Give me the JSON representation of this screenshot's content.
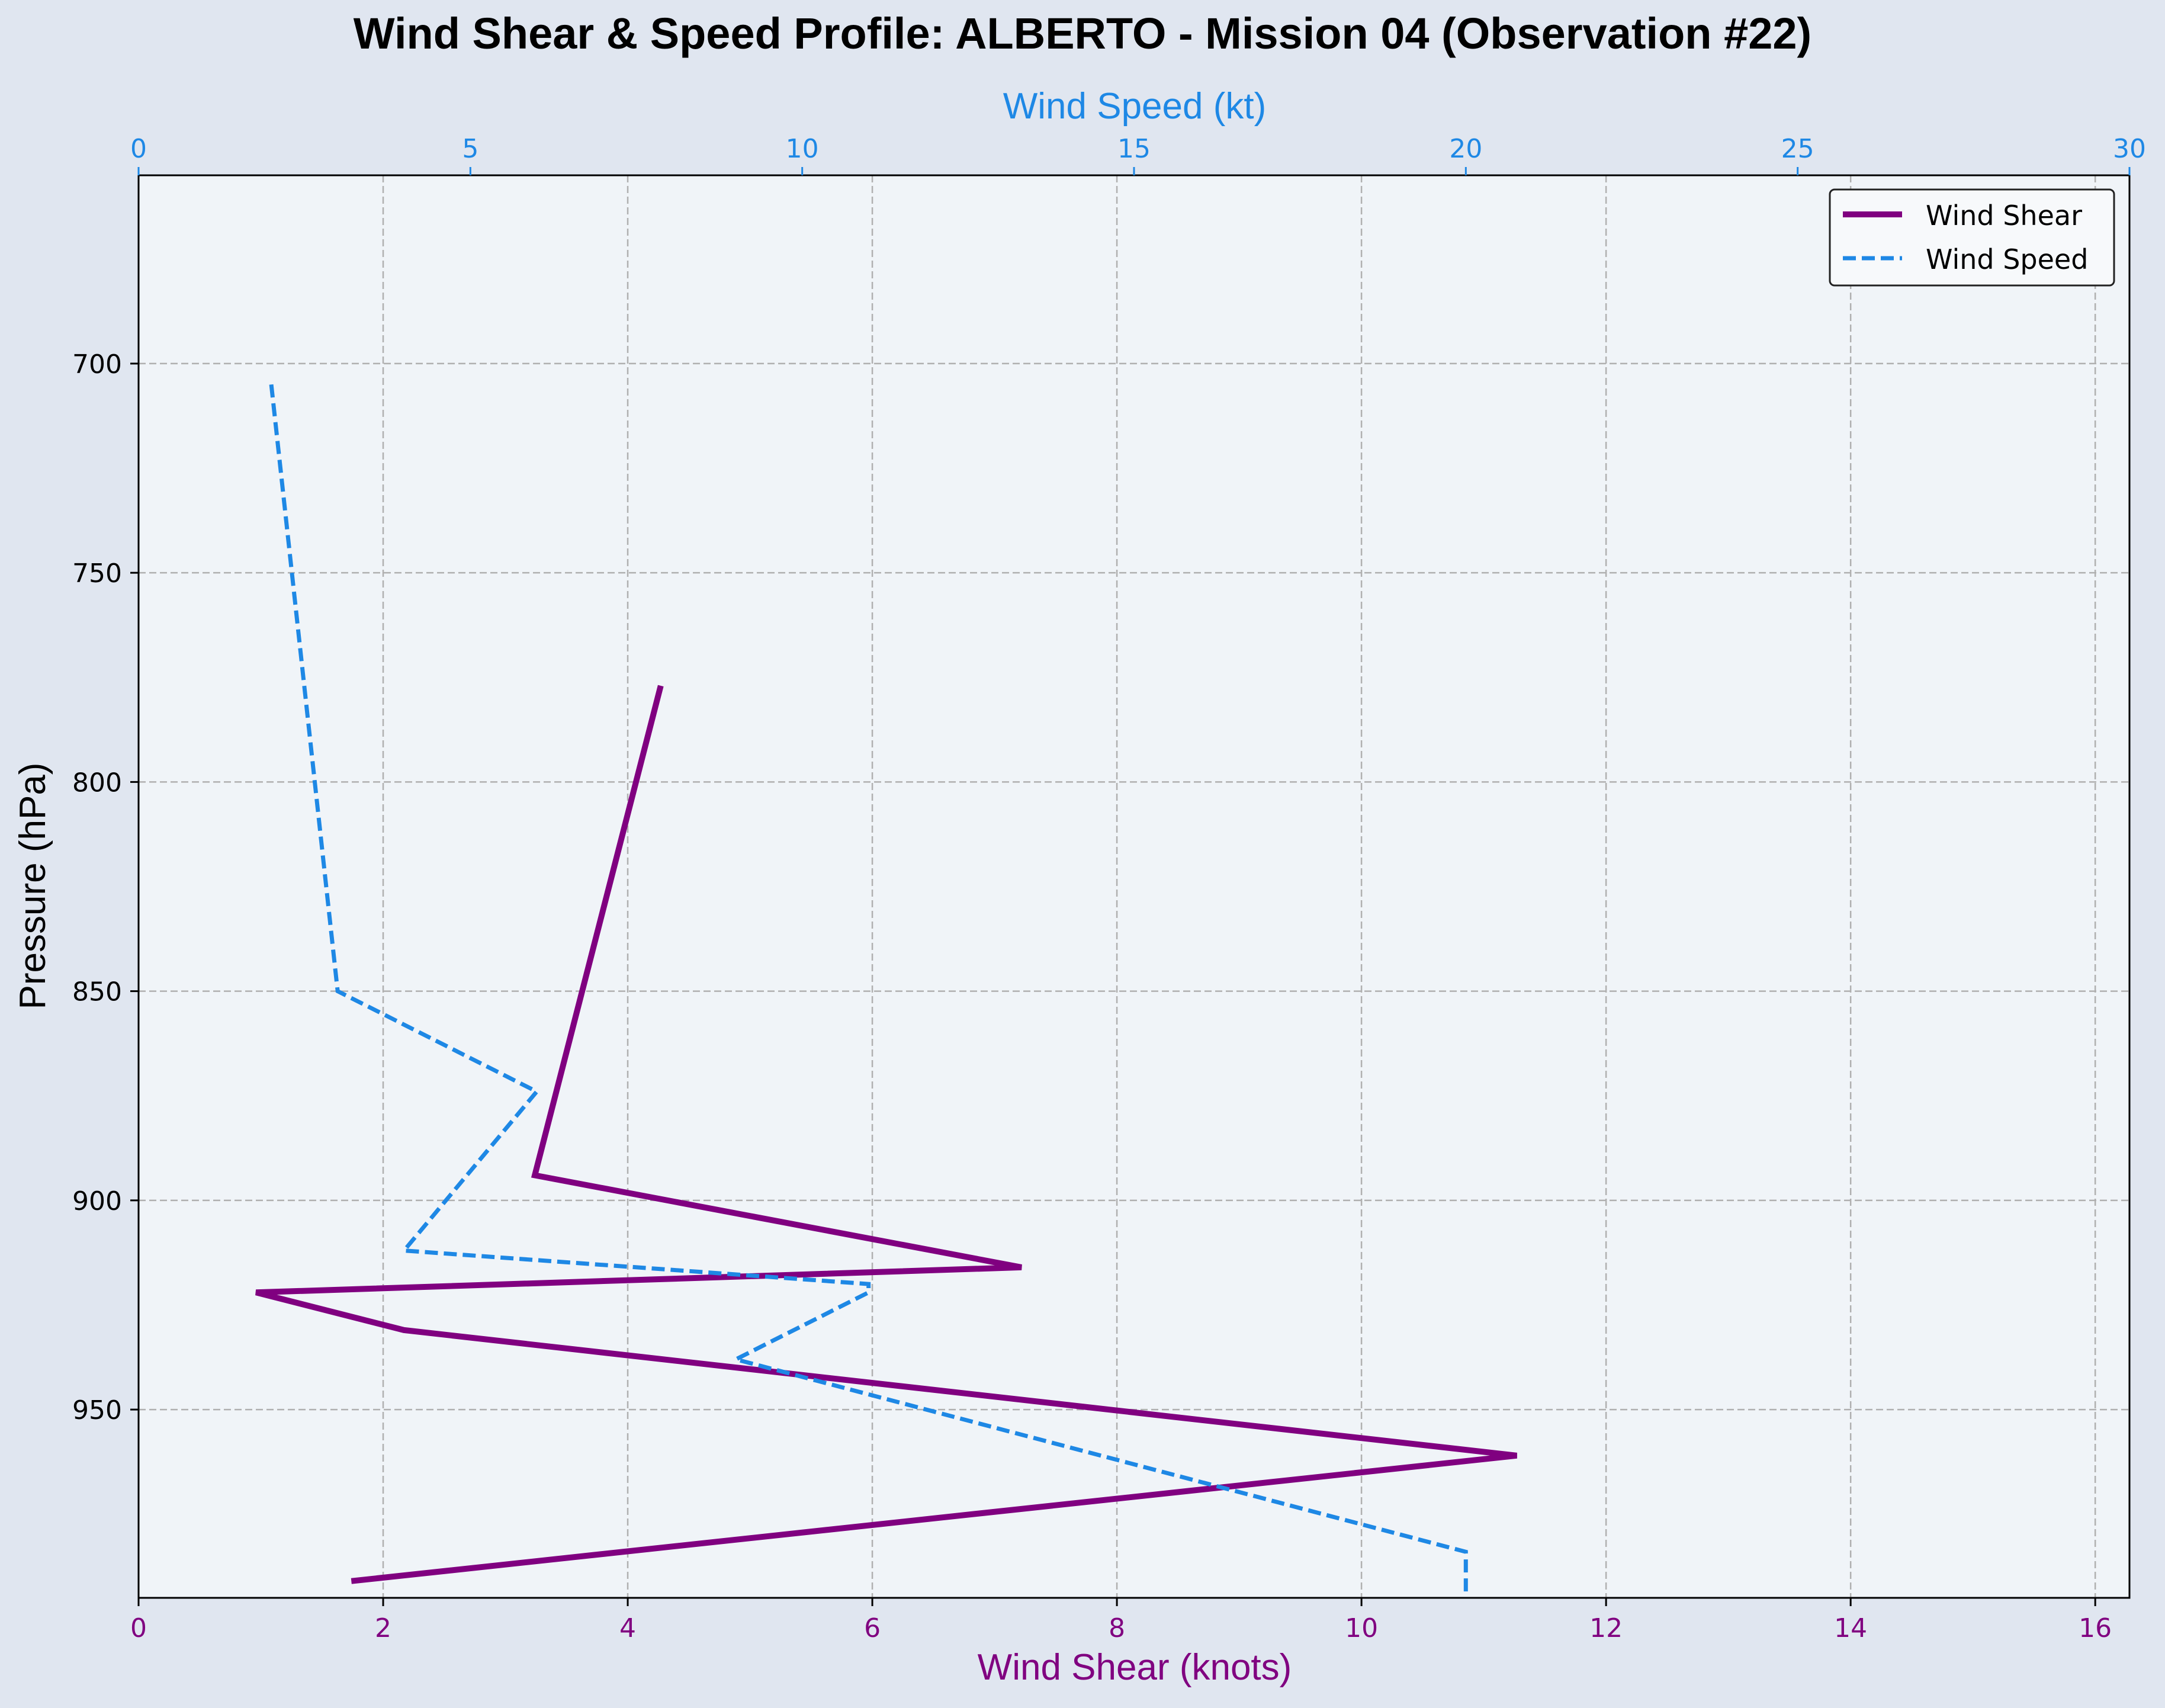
{
  "chart_data": {
    "type": "line",
    "title": "Wind Shear & Speed Profile: ALBERTO - Mission 04 (Observation #22)",
    "ylabel": "Pressure (hPa)",
    "xlabel_bottom": "Wind Shear (knots)",
    "xlabel_top": "Wind Speed (kt)",
    "y_inverted": true,
    "ylim": [
      995,
      655
    ],
    "xlim_bottom": [
      0,
      16.28
    ],
    "xlim_top": [
      0,
      30
    ],
    "yticks": [
      "700",
      "750",
      "800",
      "850",
      "900",
      "950"
    ],
    "xticks_bottom": [
      "0",
      "2",
      "4",
      "6",
      "8",
      "10",
      "12",
      "14",
      "16"
    ],
    "xticks_top": [
      "0",
      "5",
      "10",
      "15",
      "20",
      "25",
      "30"
    ],
    "grid": true,
    "legend_position": "upper-right",
    "colors": {
      "shear": "#800080",
      "speed": "#1e88e5",
      "plot_bg": "#f0f4f8",
      "fig_bg": "#e0e6f0",
      "grid": "#b0b0b0"
    },
    "series": [
      {
        "name": "Wind Shear",
        "axis": "bottom",
        "style": "solid",
        "points": [
          {
            "x": 4.27,
            "y": 777
          },
          {
            "x": 3.24,
            "y": 894
          },
          {
            "x": 7.22,
            "y": 916
          },
          {
            "x": 0.96,
            "y": 922
          },
          {
            "x": 2.17,
            "y": 931
          },
          {
            "x": 11.27,
            "y": 961
          },
          {
            "x": 1.74,
            "y": 991
          }
        ]
      },
      {
        "name": "Wind Speed",
        "axis": "top",
        "style": "dashed",
        "points": [
          {
            "x": 2.0,
            "y": 705
          },
          {
            "x": 3.0,
            "y": 850
          },
          {
            "x": 6.0,
            "y": 874
          },
          {
            "x": 4.0,
            "y": 912
          },
          {
            "x": 11.0,
            "y": 920
          },
          {
            "x": 11.0,
            "y": 922
          },
          {
            "x": 9.0,
            "y": 938
          },
          {
            "x": 20.0,
            "y": 984
          },
          {
            "x": 20.0,
            "y": 995
          }
        ]
      }
    ]
  }
}
